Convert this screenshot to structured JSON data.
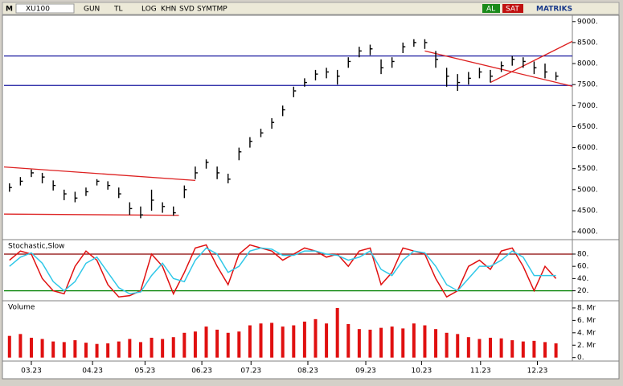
{
  "toolbar": {
    "menu": "M",
    "symbol": "XU100",
    "period": "GUN",
    "currency": "TL",
    "buttons": [
      "LOG",
      "KHN",
      "SVD",
      "SYM",
      "TMP"
    ],
    "buy": "AL",
    "sell": "SAT",
    "brand": "MATRIKS"
  },
  "chart_data": [
    {
      "type": "ohlc",
      "color": "#000000",
      "xlim": [
        -0.5,
        51.5
      ],
      "xticks": [
        {
          "value": 2,
          "label": "03.23"
        },
        {
          "value": 7.6,
          "label": "04.23"
        },
        {
          "value": 12.4,
          "label": "05.23"
        },
        {
          "value": 17.6,
          "label": "06.23"
        },
        {
          "value": 22.1,
          "label": "07.23"
        },
        {
          "value": 27.3,
          "label": "08.23"
        },
        {
          "value": 32.6,
          "label": "09.23"
        },
        {
          "value": 37.7,
          "label": "10.23"
        },
        {
          "value": 43.1,
          "label": "11.23"
        },
        {
          "value": 48.3,
          "label": "12.23"
        }
      ],
      "ylim": [
        3830,
        9130
      ],
      "yticks": [
        {
          "value": 9000,
          "label": "9000."
        },
        {
          "value": 8500,
          "label": "8500."
        },
        {
          "value": 8000,
          "label": "8000."
        },
        {
          "value": 7500,
          "label": "7500."
        },
        {
          "value": 7000,
          "label": "7000."
        },
        {
          "value": 6500,
          "label": "6500."
        },
        {
          "value": 6000,
          "label": "6000."
        },
        {
          "value": 5500,
          "label": "5500."
        },
        {
          "value": 5000,
          "label": "5000."
        },
        {
          "value": 4500,
          "label": "4500."
        },
        {
          "value": 4000,
          "label": "4000."
        }
      ],
      "high": [
        5150,
        5300,
        5480,
        5400,
        5220,
        5000,
        4950,
        5050,
        5250,
        5200,
        5050,
        4700,
        4600,
        5000,
        4700,
        4600,
        5100,
        5550,
        5720,
        5550,
        5380,
        6000,
        6250,
        6450,
        6700,
        7000,
        7450,
        7650,
        7850,
        7900,
        7850,
        8150,
        8400,
        8450,
        8100,
        8150,
        8500,
        8580,
        8580,
        8300,
        7900,
        7750,
        7800,
        7900,
        7850,
        8050,
        8180,
        8150,
        8050,
        8000,
        7800
      ],
      "low": [
        4950,
        5100,
        5300,
        5150,
        4980,
        4750,
        4700,
        4850,
        5100,
        5000,
        4800,
        4400,
        4320,
        4500,
        4450,
        4380,
        4800,
        5250,
        5500,
        5250,
        5150,
        5700,
        6000,
        6250,
        6450,
        6750,
        7200,
        7450,
        7600,
        7650,
        7500,
        7900,
        8150,
        8200,
        7750,
        7900,
        8250,
        8400,
        8350,
        7900,
        7450,
        7350,
        7500,
        7650,
        7550,
        7800,
        7950,
        7900,
        7750,
        7650,
        7600
      ],
      "close": [
        5050,
        5200,
        5400,
        5300,
        5100,
        4900,
        4800,
        4950,
        5200,
        5100,
        4900,
        4550,
        4400,
        4750,
        4600,
        4450,
        5000,
        5400,
        5650,
        5400,
        5250,
        5900,
        6150,
        6350,
        6600,
        6900,
        7350,
        7550,
        7750,
        7800,
        7700,
        8050,
        8300,
        8350,
        7900,
        8050,
        8400,
        8500,
        8500,
        8100,
        7700,
        7550,
        7650,
        7800,
        7700,
        7950,
        8100,
        8050,
        7900,
        7800,
        7700
      ],
      "hlines": [
        {
          "value": 8180,
          "color": "#1a1aa0"
        },
        {
          "value": 7480,
          "color": "#1a1aa0"
        }
      ],
      "trendlines": [
        {
          "color": "#dd2020",
          "x": [
            -0.5,
            17
          ],
          "y": [
            5540,
            5220
          ]
        },
        {
          "color": "#dd2020",
          "x": [
            -0.5,
            15.5
          ],
          "y": [
            4420,
            4390
          ]
        },
        {
          "color": "#dd2020",
          "x": [
            38,
            51.5
          ],
          "y": [
            8300,
            7460
          ]
        },
        {
          "color": "#dd2020",
          "x": [
            44,
            51.5
          ],
          "y": [
            7550,
            8530
          ]
        }
      ]
    },
    {
      "type": "line",
      "title": "Stochastic,Slow",
      "xlim": [
        -0.5,
        51.5
      ],
      "ylim": [
        5,
        101
      ],
      "yticks": [
        {
          "value": 80,
          "label": "80."
        },
        {
          "value": 60,
          "label": "60."
        },
        {
          "value": 40,
          "label": "40."
        },
        {
          "value": 20,
          "label": "20."
        }
      ],
      "hlines": [
        {
          "value": 80,
          "color": "#8b0000"
        },
        {
          "value": 20,
          "color": "#008000"
        }
      ],
      "series": [
        {
          "color": "#e01010",
          "values": [
            70,
            85,
            80,
            40,
            20,
            15,
            60,
            85,
            70,
            30,
            10,
            12,
            20,
            80,
            60,
            15,
            50,
            90,
            95,
            60,
            30,
            80,
            95,
            90,
            85,
            70,
            80,
            90,
            85,
            75,
            80,
            60,
            85,
            90,
            30,
            50,
            90,
            85,
            80,
            40,
            10,
            20,
            60,
            70,
            55,
            85,
            90,
            60,
            20,
            60,
            40
          ]
        },
        {
          "color": "#30c8e8",
          "values": [
            60,
            75,
            82,
            65,
            35,
            20,
            35,
            65,
            75,
            50,
            25,
            15,
            18,
            45,
            65,
            40,
            35,
            70,
            90,
            80,
            50,
            60,
            85,
            90,
            88,
            78,
            78,
            85,
            85,
            80,
            78,
            70,
            75,
            85,
            55,
            45,
            70,
            85,
            82,
            60,
            30,
            20,
            40,
            60,
            60,
            70,
            85,
            75,
            45,
            45,
            45
          ]
        }
      ]
    },
    {
      "type": "bar",
      "title": "Volume",
      "color": "#e01010",
      "xlim": [
        -0.5,
        51.5
      ],
      "ylim": [
        -0.3,
        8.9
      ],
      "yticks": [
        {
          "value": 8,
          "label": "8. Mr"
        },
        {
          "value": 6,
          "label": "6. Mr"
        },
        {
          "value": 4,
          "label": "4. Mr"
        },
        {
          "value": 2,
          "label": "2. Mr"
        },
        {
          "value": 0,
          "label": "0."
        }
      ],
      "values": [
        3.5,
        3.8,
        3.2,
        3,
        2.6,
        2.5,
        2.8,
        2.4,
        2.2,
        2.3,
        2.6,
        3,
        2.5,
        3.2,
        3,
        3.3,
        4,
        4.2,
        5,
        4.5,
        4,
        4.2,
        5.2,
        5.5,
        5.6,
        5,
        5.2,
        5.8,
        6.2,
        5.5,
        8,
        5.4,
        4.6,
        4.5,
        4.8,
        5,
        4.7,
        5.5,
        5.2,
        4.6,
        4,
        3.8,
        3.3,
        3,
        3.2,
        3.1,
        2.8,
        2.6,
        2.7,
        2.5,
        2.3
      ]
    }
  ]
}
